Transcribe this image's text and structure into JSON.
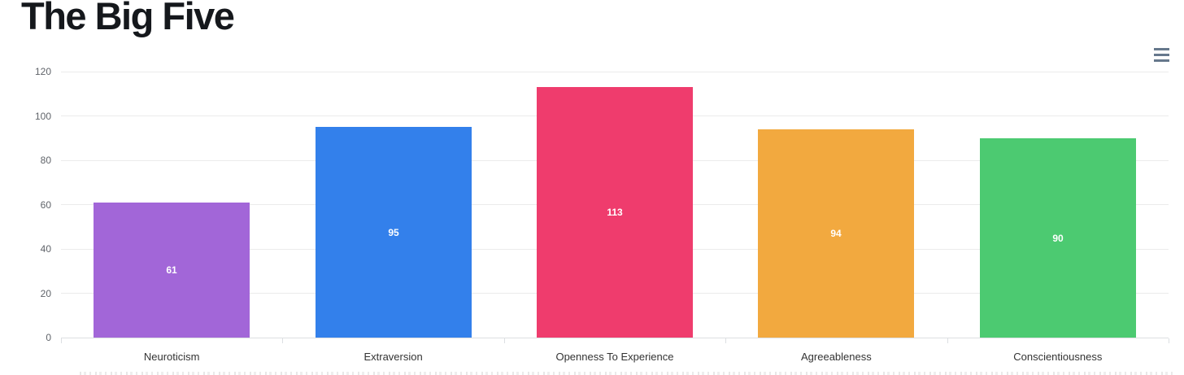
{
  "header": {
    "title": "The Big Five",
    "menu_icon": "hamburger-icon"
  },
  "chart_data": {
    "type": "bar",
    "title": "The Big Five",
    "categories": [
      "Neuroticism",
      "Extraversion",
      "Openness To Experience",
      "Agreeableness",
      "Conscientiousness"
    ],
    "values": [
      61,
      95,
      113,
      94,
      90
    ],
    "data_labels": [
      "61",
      "95",
      "113",
      "94",
      "90"
    ],
    "bar_colors": [
      "#a266d8",
      "#3380eb",
      "#ef3c6d",
      "#f2a93f",
      "#4cca71"
    ],
    "label_color": "#ffffff",
    "yticks": [
      0,
      20,
      40,
      60,
      80,
      100,
      120
    ],
    "ylim": [
      0,
      120
    ],
    "xlabel": "",
    "ylabel": "",
    "grid": true,
    "legend": false
  }
}
